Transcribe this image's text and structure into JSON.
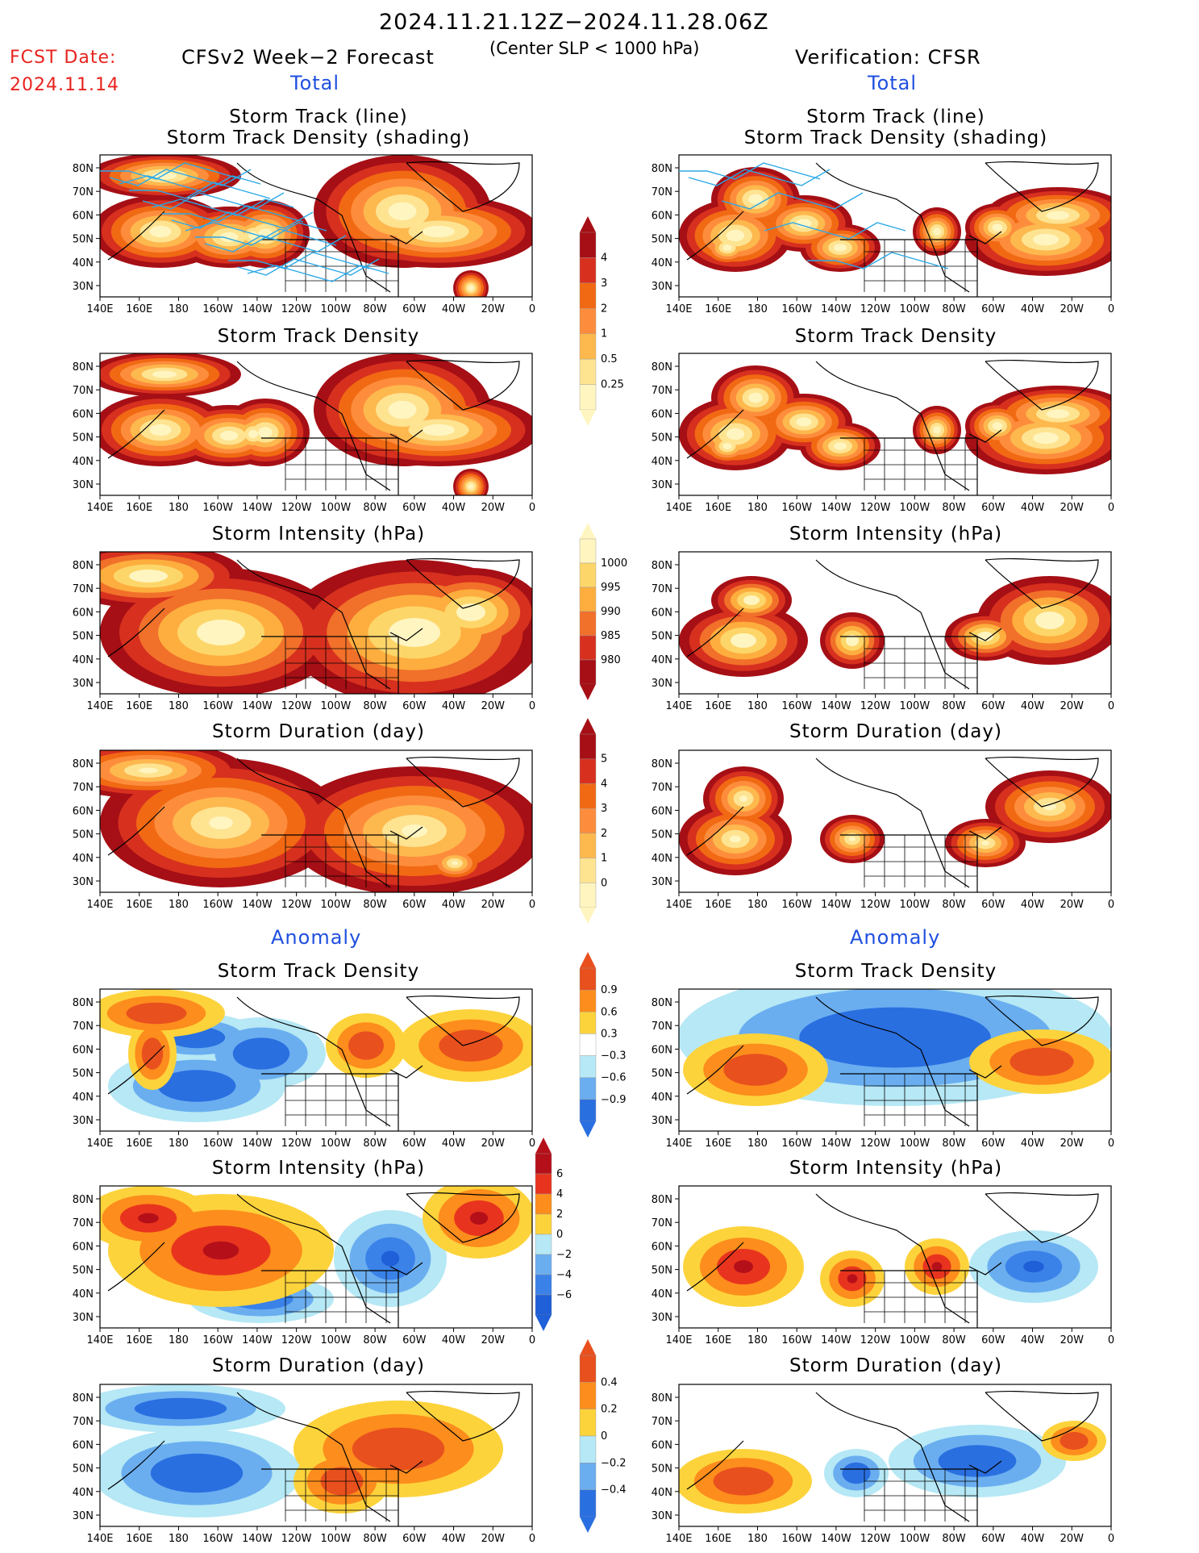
{
  "header": {
    "period": "2024.11.21.12Z−2024.11.28.06Z",
    "criterion": "(Center SLP < 1000 hPa)",
    "fcst_label": "FCST Date:",
    "fcst_date": "2024.11.14",
    "left_title": "CFSv2 Week−2 Forecast",
    "right_title": "Verification: CFSR"
  },
  "sections": {
    "total": "Total",
    "anomaly": "Anomaly"
  },
  "panel_titles": {
    "track_line": "Storm Track (line)",
    "track_shading": "Storm Track Density (shading)",
    "density": "Storm Track Density",
    "intensity": "Storm Intensity (hPa)",
    "duration": "Storm Duration (day)"
  },
  "axes": {
    "lat_labels": [
      "80N",
      "70N",
      "60N",
      "50N",
      "40N",
      "30N"
    ],
    "lon_labels": [
      "140E",
      "160E",
      "180",
      "160W",
      "140W",
      "120W",
      "100W",
      "80W",
      "60W",
      "40W",
      "20W",
      "0"
    ]
  },
  "colorbars": {
    "density_total": {
      "labels": [
        "4",
        "3",
        "2",
        "1",
        "0.5",
        "0.25"
      ],
      "colors": [
        "#a50f15",
        "#d7301f",
        "#f16913",
        "#fd8d3c",
        "#fdb84e",
        "#fee391",
        "#fff5c0"
      ]
    },
    "intensity_total": {
      "labels": [
        "1000",
        "995",
        "990",
        "985",
        "980"
      ],
      "colors": [
        "#fff5c0",
        "#fdd66a",
        "#fdae3e",
        "#f1702a",
        "#d7301f",
        "#a50f15"
      ]
    },
    "duration_total": {
      "labels": [
        "5",
        "4",
        "3",
        "2",
        "1",
        "0"
      ],
      "colors": [
        "#a50f15",
        "#d7301f",
        "#f16913",
        "#fd8d3c",
        "#fdb84e",
        "#fee391",
        "#fff5c0"
      ]
    },
    "density_anom": {
      "labels": [
        "0.9",
        "0.6",
        "0.3",
        "−0.3",
        "−0.6",
        "−0.9"
      ],
      "colors": [
        "#e8501e",
        "#fd8d1c",
        "#fdd33c",
        "#ffffff",
        "#b6e8f5",
        "#6aaef0",
        "#2a6fe0"
      ]
    },
    "intensity_anom": {
      "labels": [
        "6",
        "4",
        "2",
        "0",
        "−2",
        "−4",
        "−6"
      ],
      "colors": [
        "#b5101a",
        "#e8341e",
        "#fd8d1c",
        "#fdd33c",
        "#b6e8f5",
        "#6aaef0",
        "#3a82e8",
        "#1f5fd8"
      ]
    },
    "duration_anom": {
      "labels": [
        "0.4",
        "0.2",
        "0",
        "−0.2",
        "−0.4"
      ],
      "colors": [
        "#e8501e",
        "#fd8d1c",
        "#fdd33c",
        "#b6e8f5",
        "#6aaef0",
        "#2a6fe0"
      ]
    }
  }
}
